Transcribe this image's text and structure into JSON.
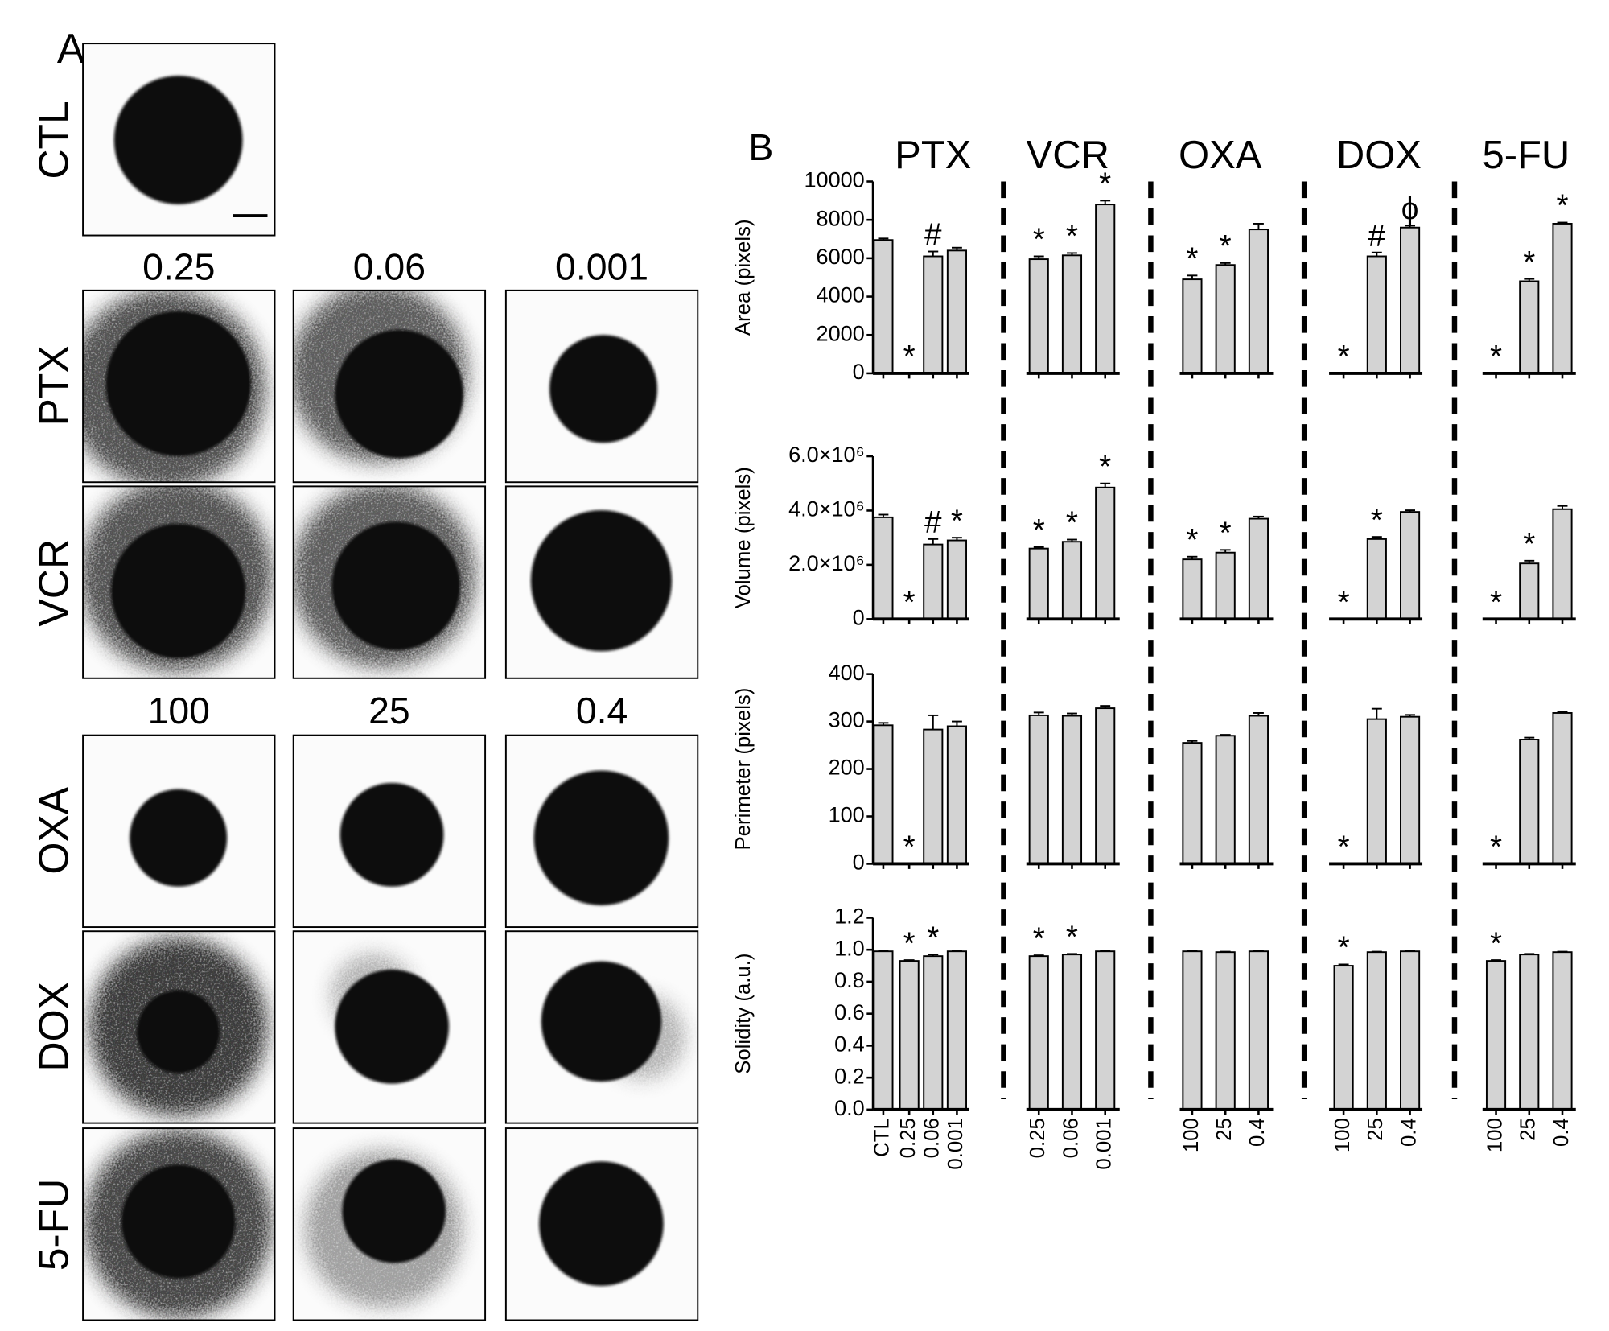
{
  "panel_a": {
    "label": "A",
    "rows": [
      "CTL",
      "PTX",
      "VCR",
      "OXA",
      "DOX",
      "5-FU"
    ],
    "column_headers": [
      [
        "0.25",
        "0.06",
        "0.001"
      ],
      [
        "100",
        "25",
        "0.4"
      ]
    ]
  },
  "panel_b": {
    "label": "B",
    "drugs": [
      {
        "name": "PTX",
        "categories": [
          "CTL",
          "0.25",
          "0.06",
          "0.001"
        ]
      },
      {
        "name": "VCR",
        "categories": [
          "0.25",
          "0.06",
          "0.001"
        ]
      },
      {
        "name": "OXA",
        "categories": [
          "100",
          "25",
          "0.4"
        ]
      },
      {
        "name": "DOX",
        "categories": [
          "100",
          "25",
          "0.4"
        ]
      },
      {
        "name": "5-FU",
        "categories": [
          "100",
          "25",
          "0.4"
        ]
      }
    ]
  },
  "chart_data": [
    {
      "type": "bar",
      "ylabel": "Area (pixels)",
      "ylim": [
        0,
        10000
      ],
      "yticks": [
        0,
        2000,
        4000,
        6000,
        8000,
        10000
      ],
      "color": "#d3d3d3",
      "groups": [
        {
          "values": [
            6950,
            0,
            6100,
            6400
          ],
          "errors": [
            80,
            0,
            250,
            150
          ],
          "markers": [
            null,
            "*",
            "#",
            null
          ]
        },
        {
          "values": [
            5950,
            6150,
            8800
          ],
          "errors": [
            150,
            120,
            200
          ],
          "markers": [
            "*",
            "*",
            "*"
          ]
        },
        {
          "values": [
            4900,
            5650,
            7500
          ],
          "errors": [
            200,
            100,
            300
          ],
          "markers": [
            "*",
            "*",
            null
          ]
        },
        {
          "values": [
            0,
            6100,
            7600
          ],
          "errors": [
            0,
            200,
            100
          ],
          "markers": [
            "*",
            "#",
            "ϕ"
          ]
        },
        {
          "values": [
            0,
            4800,
            7800
          ],
          "errors": [
            0,
            120,
            60
          ],
          "markers": [
            "*",
            "*",
            "*"
          ]
        }
      ]
    },
    {
      "type": "bar",
      "ylabel": "Volume (pixels)",
      "ylim": [
        0,
        6000000
      ],
      "yticks": [
        0,
        {
          "value": 2000000,
          "label": "2.0×10⁶"
        },
        {
          "value": 4000000,
          "label": "4.0×10⁶"
        },
        {
          "value": 6000000,
          "label": "6.0×10⁶"
        }
      ],
      "color": "#d3d3d3",
      "groups": [
        {
          "values": [
            3750000,
            0,
            2750000,
            2900000
          ],
          "errors": [
            100000,
            0,
            200000,
            100000
          ],
          "markers": [
            null,
            "*",
            "#",
            "*"
          ]
        },
        {
          "values": [
            2600000,
            2850000,
            4850000
          ],
          "errors": [
            50000,
            80000,
            150000
          ],
          "markers": [
            "*",
            "*",
            "*"
          ]
        },
        {
          "values": [
            2200000,
            2450000,
            3700000
          ],
          "errors": [
            100000,
            100000,
            80000
          ],
          "markers": [
            "*",
            "*",
            null
          ]
        },
        {
          "values": [
            0,
            2950000,
            3950000
          ],
          "errors": [
            0,
            80000,
            60000
          ],
          "markers": [
            "*",
            "*",
            null
          ]
        },
        {
          "values": [
            0,
            2050000,
            4050000
          ],
          "errors": [
            0,
            100000,
            120000
          ],
          "markers": [
            "*",
            "*",
            null
          ]
        }
      ]
    },
    {
      "type": "bar",
      "ylabel": "Perimeter (pixels)",
      "ylim": [
        0,
        400
      ],
      "yticks": [
        0,
        100,
        200,
        300,
        400
      ],
      "color": "#d3d3d3",
      "groups": [
        {
          "values": [
            292,
            0,
            283,
            290
          ],
          "errors": [
            5,
            0,
            30,
            10
          ],
          "markers": [
            null,
            "*",
            null,
            null
          ]
        },
        {
          "values": [
            313,
            312,
            328
          ],
          "errors": [
            6,
            5,
            5
          ],
          "markers": [
            null,
            null,
            null
          ]
        },
        {
          "values": [
            255,
            270,
            312
          ],
          "errors": [
            4,
            2,
            6
          ],
          "markers": [
            null,
            null,
            null
          ]
        },
        {
          "values": [
            0,
            305,
            310
          ],
          "errors": [
            0,
            22,
            4
          ],
          "markers": [
            "*",
            null,
            null
          ]
        },
        {
          "values": [
            0,
            262,
            318
          ],
          "errors": [
            0,
            4,
            2
          ],
          "markers": [
            "*",
            null,
            null
          ]
        }
      ]
    },
    {
      "type": "bar",
      "ylabel": "Solidity (a.u.)",
      "ylim": [
        0,
        1.2
      ],
      "yticks": [
        {
          "value": 0,
          "label": "0.0"
        },
        0.2,
        0.4,
        0.6,
        0.8,
        {
          "value": 1,
          "label": "1.0"
        },
        1.2
      ],
      "color": "#d3d3d3",
      "groups": [
        {
          "values": [
            0.99,
            0.93,
            0.96,
            0.99
          ],
          "errors": [
            0.005,
            0.005,
            0.01,
            0.003
          ],
          "markers": [
            null,
            "*",
            "*",
            null
          ]
        },
        {
          "values": [
            0.96,
            0.97,
            0.99
          ],
          "errors": [
            0.005,
            0.004,
            0.003
          ],
          "markers": [
            "*",
            "*",
            null
          ]
        },
        {
          "values": [
            0.99,
            0.985,
            0.99
          ],
          "errors": [
            0.003,
            0.003,
            0.003
          ],
          "markers": [
            null,
            null,
            null
          ]
        },
        {
          "values": [
            0.9,
            0.985,
            0.99
          ],
          "errors": [
            0.008,
            0.003,
            0.003
          ],
          "markers": [
            "*",
            null,
            null
          ]
        },
        {
          "values": [
            0.93,
            0.97,
            0.985
          ],
          "errors": [
            0.005,
            0.004,
            0.003
          ],
          "markers": [
            "*",
            null,
            null
          ]
        }
      ]
    }
  ]
}
